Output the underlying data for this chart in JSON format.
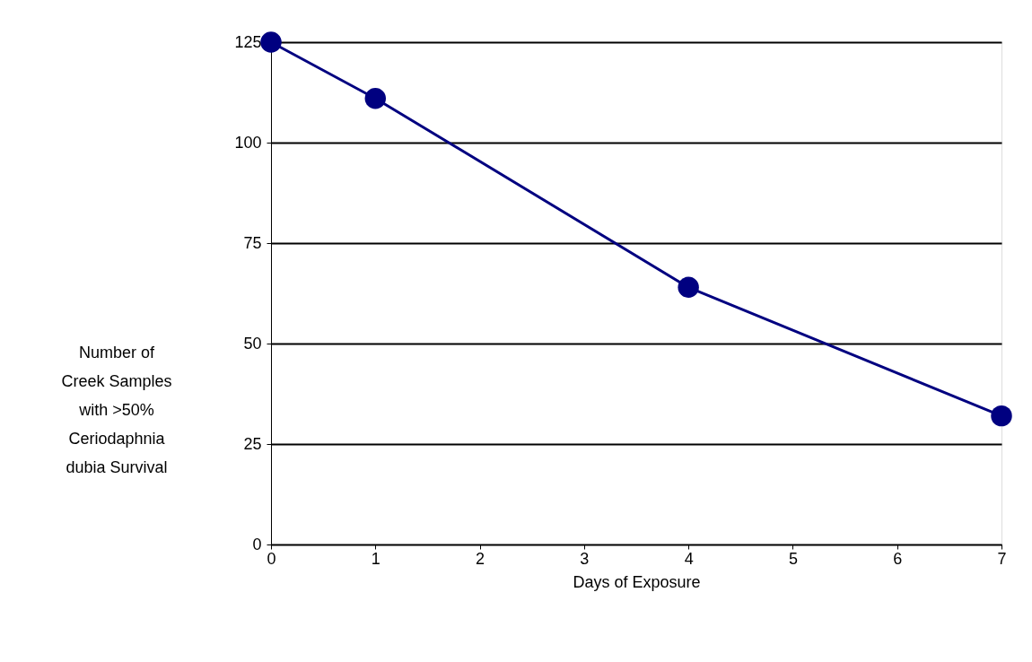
{
  "chart_data": {
    "type": "line",
    "xlabel": "Days of Exposure",
    "ylabel": "Number of\nCreek Samples\nwith >50%\nCeriodaphnia\ndubia  Survival",
    "x": [
      0,
      1,
      4,
      7
    ],
    "series": [
      {
        "color": "#000080",
        "values": [
          125,
          111,
          64,
          32
        ]
      }
    ],
    "xlim": [
      0,
      7
    ],
    "xticks": [
      0,
      1,
      2,
      3,
      4,
      5,
      6,
      7
    ],
    "ylim": [
      0,
      125
    ],
    "yticks": [
      0,
      25,
      50,
      75,
      100,
      125
    ],
    "grid": "y",
    "marker": "circle",
    "line_style": "solid",
    "legend": false
  }
}
